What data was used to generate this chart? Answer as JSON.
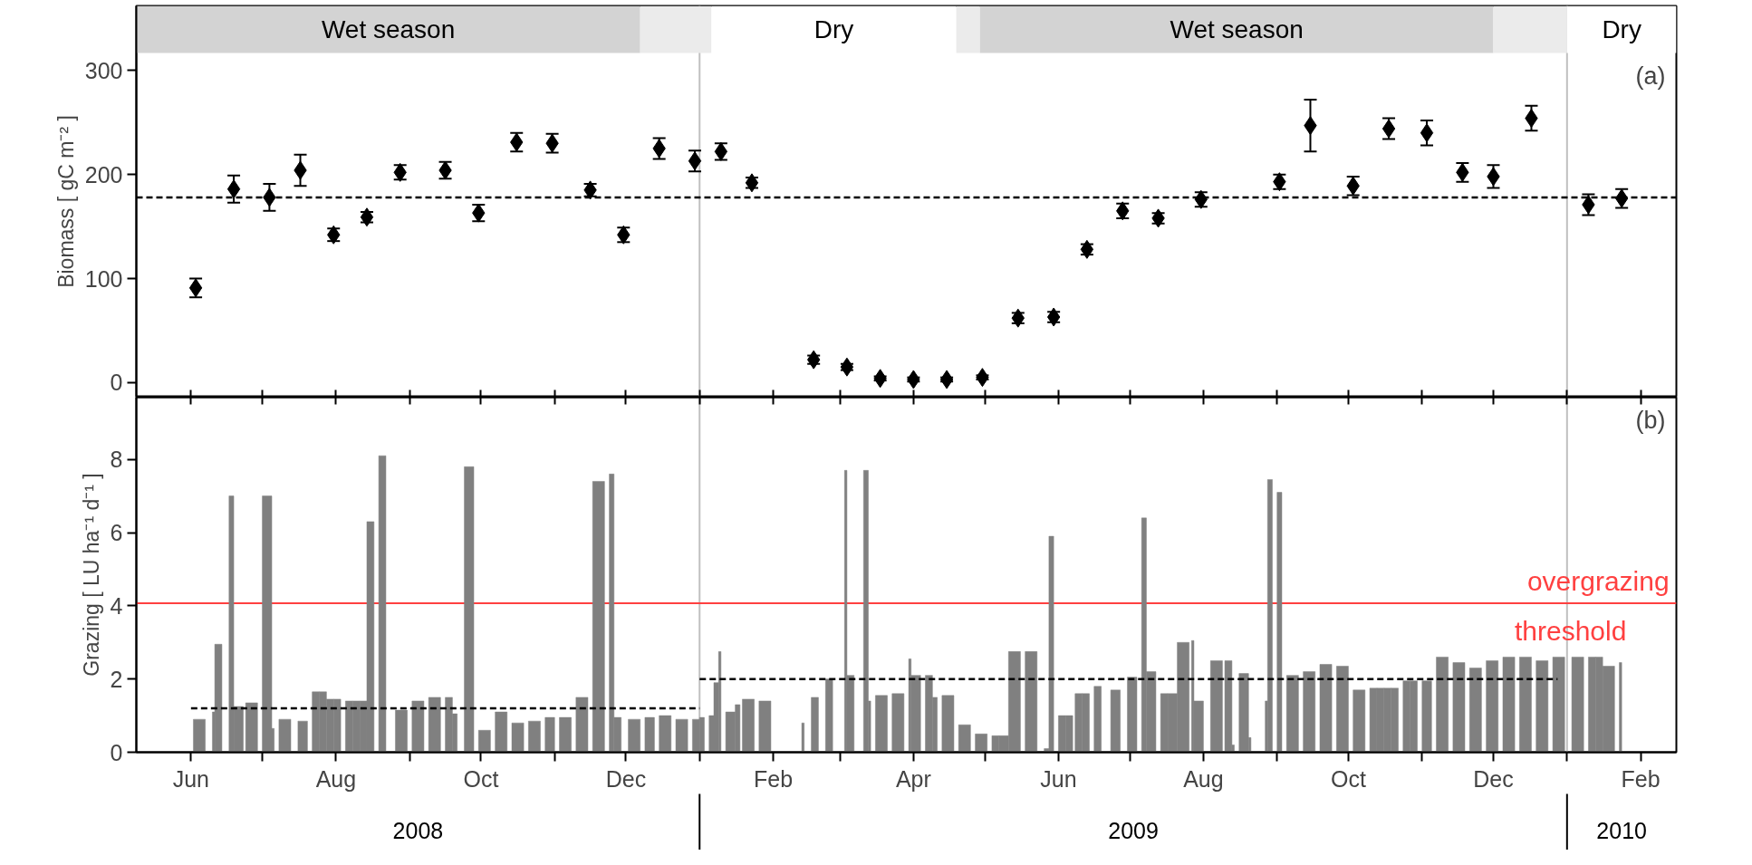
{
  "chart_data": [
    {
      "type": "scatter",
      "ylabel": "Biomass [ gC m⁻² ]",
      "xlim": [
        "2008-05-09",
        "2010-02-16"
      ],
      "ylim": [
        -14,
        362
      ],
      "yticks": [
        0,
        100,
        200,
        300
      ],
      "tick_labels": "y",
      "xticks": [
        {
          "value": "2008-06-01",
          "label": null
        },
        {
          "value": "2008-07-01",
          "label": null
        },
        {
          "value": "2008-08-01",
          "label": null
        },
        {
          "value": "2008-09-01",
          "label": null
        },
        {
          "value": "2008-10-01",
          "label": null
        },
        {
          "value": "2008-11-01",
          "label": null
        },
        {
          "value": "2008-12-01",
          "label": null
        },
        {
          "value": "2009-01-01",
          "label": null
        },
        {
          "value": "2009-02-01",
          "label": null
        },
        {
          "value": "2009-03-01",
          "label": null
        },
        {
          "value": "2009-04-01",
          "label": null
        },
        {
          "value": "2009-05-01",
          "label": null
        },
        {
          "value": "2009-06-01",
          "label": null
        },
        {
          "value": "2009-07-01",
          "label": null
        },
        {
          "value": "2009-08-01",
          "label": null
        },
        {
          "value": "2009-09-01",
          "label": null
        },
        {
          "value": "2009-10-01",
          "label": null
        },
        {
          "value": "2009-11-01",
          "label": null
        },
        {
          "value": "2009-12-01",
          "label": null
        },
        {
          "value": "2010-01-01",
          "label": null
        },
        {
          "value": "2010-02-01",
          "label": null
        }
      ],
      "series": [
        {
          "marker": "diamond",
          "color": "#000000",
          "x": [
            "2008-06-03",
            "2008-06-19",
            "2008-07-04",
            "2008-07-17",
            "2008-07-31",
            "2008-08-14",
            "2008-08-28",
            "2008-09-16",
            "2008-09-30",
            "2008-10-16",
            "2008-10-31",
            "2008-11-16",
            "2008-11-30",
            "2008-12-15",
            "2008-12-30",
            "2009-01-10",
            "2009-01-23",
            "2009-02-18",
            "2009-03-04",
            "2009-03-18",
            "2009-04-01",
            "2009-04-15",
            "2009-04-30",
            "2009-05-15",
            "2009-05-30",
            "2009-06-13",
            "2009-06-28",
            "2009-07-13",
            "2009-07-31",
            "2009-09-02",
            "2009-09-15",
            "2009-10-03",
            "2009-10-18",
            "2009-11-03",
            "2009-11-18",
            "2009-12-01",
            "2009-12-17",
            "2010-01-10",
            "2010-01-24"
          ],
          "values": [
            91,
            186,
            178,
            204,
            142,
            159,
            202,
            204,
            163,
            231,
            230,
            185,
            142,
            225,
            213,
            222,
            192,
            22,
            15,
            4,
            3,
            3,
            5,
            62,
            63,
            128,
            165,
            158,
            176,
            193,
            247,
            189,
            244,
            240,
            202,
            198,
            254,
            171,
            177
          ],
          "errors": [
            9,
            13,
            13,
            15,
            6,
            5,
            7,
            8,
            8,
            9,
            9,
            6,
            7,
            10,
            10,
            8,
            5,
            4,
            3,
            2,
            2,
            2,
            2,
            5,
            5,
            5,
            7,
            5,
            7,
            7,
            25,
            9,
            10,
            12,
            9,
            11,
            12,
            10,
            9
          ]
        },
        {
          "type": "line",
          "color": "#000000",
          "line_style": "dashed",
          "x": [
            "2008-05-09",
            "2010-02-16"
          ],
          "values": [
            178,
            178
          ]
        }
      ],
      "bands": [
        {
          "axis": "x",
          "from": "2008-05-09",
          "to": "2008-12-07",
          "label": "Wet season",
          "color": "#d3d3d3"
        },
        {
          "axis": "x",
          "from": "2008-12-07",
          "to": "2009-01-06",
          "color": "#ebebeb"
        },
        {
          "axis": "x",
          "from": "2009-01-06",
          "to": "2009-04-19",
          "label": "Dry",
          "color": "#ffffff"
        },
        {
          "axis": "x",
          "from": "2009-04-19",
          "to": "2009-04-29",
          "color": "#ebebeb"
        },
        {
          "axis": "x",
          "from": "2009-04-29",
          "to": "2009-12-01",
          "label": "Wet season",
          "color": "#d3d3d3"
        },
        {
          "axis": "x",
          "from": "2009-12-01",
          "to": "2010-01-01",
          "color": "#ebebeb"
        },
        {
          "axis": "x",
          "from": "2010-01-01",
          "to": "2010-02-16",
          "label": "Dry",
          "color": "#ffffff"
        }
      ],
      "ref_lines": [
        {
          "axis": "x",
          "value": "2009-01-01",
          "color": "#c0c0c0"
        },
        {
          "axis": "x",
          "value": "2010-01-01",
          "color": "#c0c0c0"
        }
      ],
      "annotations": [
        "(a)"
      ]
    },
    {
      "type": "bar",
      "ylabel": "Grazing [ LU ha⁻¹ d⁻¹ ]",
      "xlim": [
        "2008-05-09",
        "2010-02-16"
      ],
      "ylim": [
        0,
        9.7
      ],
      "yticks": [
        0,
        2,
        4,
        6,
        8
      ],
      "xticks": [
        {
          "value": "2008-06-01",
          "label": "Jun"
        },
        {
          "value": "2008-07-01",
          "label": null
        },
        {
          "value": "2008-08-01",
          "label": "Aug"
        },
        {
          "value": "2008-09-01",
          "label": null
        },
        {
          "value": "2008-10-01",
          "label": "Oct"
        },
        {
          "value": "2008-11-01",
          "label": null
        },
        {
          "value": "2008-12-01",
          "label": "Dec"
        },
        {
          "value": "2009-01-01",
          "label": null
        },
        {
          "value": "2009-02-01",
          "label": "Feb"
        },
        {
          "value": "2009-03-01",
          "label": null
        },
        {
          "value": "2009-04-01",
          "label": "Apr"
        },
        {
          "value": "2009-05-01",
          "label": null
        },
        {
          "value": "2009-06-01",
          "label": "Jun"
        },
        {
          "value": "2009-07-01",
          "label": null
        },
        {
          "value": "2009-08-01",
          "label": "Aug"
        },
        {
          "value": "2009-09-01",
          "label": null
        },
        {
          "value": "2009-10-01",
          "label": "Oct"
        },
        {
          "value": "2009-11-01",
          "label": null
        },
        {
          "value": "2009-12-01",
          "label": "Dec"
        },
        {
          "value": "2010-01-01",
          "label": null
        },
        {
          "value": "2010-02-01",
          "label": "Feb"
        }
      ],
      "series": [
        {
          "color": "#808080",
          "x": [
            "2008-06-02",
            "2008-06-07",
            "2008-06-10",
            "2008-06-11",
            "2008-06-14",
            "2008-06-17",
            "2008-06-19",
            "2008-06-23",
            "2008-06-24",
            "2008-06-29",
            "2008-07-01",
            "2008-07-05",
            "2008-07-06",
            "2008-07-08",
            "2008-07-13",
            "2008-07-16",
            "2008-07-20",
            "2008-07-22",
            "2008-07-25",
            "2008-07-28",
            "2008-07-31",
            "2008-08-03",
            "2008-08-05",
            "2008-08-08",
            "2008-08-11",
            "2008-08-14",
            "2008-08-17",
            "2008-08-19",
            "2008-08-22",
            "2008-08-26",
            "2008-08-31",
            "2008-09-02",
            "2008-09-07",
            "2008-09-09",
            "2008-09-14",
            "2008-09-16",
            "2008-09-19",
            "2008-09-21",
            "2008-09-24",
            "2008-09-28",
            "2008-09-30",
            "2008-10-05",
            "2008-10-07",
            "2008-10-12",
            "2008-10-14",
            "2008-10-19",
            "2008-10-21",
            "2008-10-26",
            "2008-10-28",
            "2008-11-01",
            "2008-11-03",
            "2008-11-08",
            "2008-11-10",
            "2008-11-15",
            "2008-11-17",
            "2008-11-22",
            "2008-11-24",
            "2008-11-26",
            "2008-11-29",
            "2008-12-02",
            "2008-12-07",
            "2008-12-09",
            "2008-12-13",
            "2008-12-15",
            "2008-12-20",
            "2008-12-22",
            "2008-12-27",
            "2008-12-29",
            "2009-01-01",
            "2009-01-03",
            "2009-01-05",
            "2009-01-07",
            "2009-01-09",
            "2009-01-10",
            "2009-01-12",
            "2009-01-16",
            "2009-01-18",
            "2009-01-19",
            "2009-01-24",
            "2009-01-26",
            "2009-01-31",
            "2009-02-13",
            "2009-02-14",
            "2009-02-17",
            "2009-02-20",
            "2009-02-23",
            "2009-02-26",
            "2009-03-03",
            "2009-03-04",
            "2009-03-07",
            "2009-03-11",
            "2009-03-13",
            "2009-03-14",
            "2009-03-16",
            "2009-03-21",
            "2009-03-23",
            "2009-03-28",
            "2009-03-30",
            "2009-03-31",
            "2009-04-04",
            "2009-04-06",
            "2009-04-09",
            "2009-04-11",
            "2009-04-13",
            "2009-04-18",
            "2009-04-20",
            "2009-04-25",
            "2009-04-27",
            "2009-05-02",
            "2009-05-04",
            "2009-05-07",
            "2009-05-11",
            "2009-05-16",
            "2009-05-18",
            "2009-05-23",
            "2009-05-26",
            "2009-05-28",
            "2009-05-30",
            "2009-06-01",
            "2009-06-04",
            "2009-06-07",
            "2009-06-08",
            "2009-06-11",
            "2009-06-14",
            "2009-06-16",
            "2009-06-19",
            "2009-06-23",
            "2009-06-27",
            "2009-06-30",
            "2009-07-04",
            "2009-07-06",
            "2009-07-08",
            "2009-07-12",
            "2009-07-14",
            "2009-07-17",
            "2009-07-21",
            "2009-07-26",
            "2009-07-27",
            "2009-07-28",
            "2009-08-01",
            "2009-08-04",
            "2009-08-09",
            "2009-08-10",
            "2009-08-13",
            "2009-08-14",
            "2009-08-16",
            "2009-08-20",
            "2009-08-21",
            "2009-08-27",
            "2009-08-28",
            "2009-08-30",
            "2009-09-01",
            "2009-09-03",
            "2009-09-05",
            "2009-09-10",
            "2009-09-12",
            "2009-09-17",
            "2009-09-19",
            "2009-09-24",
            "2009-09-26",
            "2009-10-01",
            "2009-10-03",
            "2009-10-08",
            "2009-10-10",
            "2009-10-13",
            "2009-10-16",
            "2009-10-19",
            "2009-10-22",
            "2009-10-24",
            "2009-10-27",
            "2009-10-30",
            "2009-11-01",
            "2009-11-05",
            "2009-11-07",
            "2009-11-12",
            "2009-11-14",
            "2009-11-19",
            "2009-11-21",
            "2009-11-26",
            "2009-11-28",
            "2009-12-03",
            "2009-12-05",
            "2009-12-10",
            "2009-12-12",
            "2009-12-17",
            "2009-12-19",
            "2009-12-24",
            "2009-12-26",
            "2009-12-31",
            "2010-01-03",
            "2010-01-08",
            "2010-01-10",
            "2010-01-13",
            "2010-01-16",
            "2010-01-21",
            "2010-01-23"
          ],
          "values": [
            0.9,
            null,
            1.1,
            2.95,
            null,
            7.0,
            1.25,
            null,
            1.35,
            null,
            7.0,
            0.65,
            null,
            0.9,
            null,
            0.85,
            null,
            1.65,
            1.65,
            1.45,
            1.45,
            null,
            1.4,
            1.4,
            1.4,
            6.3,
            null,
            8.1,
            null,
            1.15,
            null,
            1.4,
            null,
            1.5,
            null,
            1.5,
            1.05,
            null,
            7.8,
            null,
            0.6,
            null,
            1.1,
            null,
            0.8,
            null,
            0.85,
            null,
            0.95,
            null,
            0.95,
            null,
            1.5,
            null,
            7.4,
            null,
            7.6,
            0.95,
            null,
            0.9,
            null,
            0.95,
            null,
            1.0,
            null,
            0.9,
            null,
            0.9,
            0.95,
            null,
            1.0,
            1.9,
            2.75,
            null,
            1.1,
            1.3,
            null,
            1.45,
            null,
            1.4,
            null,
            0.8,
            null,
            1.5,
            null,
            2.0,
            null,
            7.7,
            2.1,
            null,
            7.7,
            1.4,
            null,
            1.55,
            null,
            1.6,
            null,
            2.55,
            2.1,
            null,
            2.1,
            1.5,
            null,
            1.55,
            null,
            0.75,
            null,
            0.5,
            null,
            0.45,
            0.45,
            2.75,
            null,
            2.75,
            null,
            0.1,
            5.9,
            null,
            1.0,
            1.0,
            null,
            1.6,
            1.6,
            null,
            1.8,
            null,
            1.7,
            null,
            2.05,
            null,
            6.4,
            2.2,
            null,
            1.6,
            1.6,
            3.0,
            null,
            3.05,
            1.4,
            null,
            2.5,
            null,
            2.5,
            0.2,
            null,
            2.15,
            0.4,
            null,
            1.4,
            7.45,
            null,
            7.1,
            null,
            2.1,
            null,
            2.2,
            null,
            2.4,
            null,
            2.35,
            null,
            1.7,
            null,
            1.75,
            1.75,
            1.75,
            1.75,
            null,
            1.95,
            1.95,
            null,
            1.95,
            null,
            2.6,
            null,
            2.45,
            null,
            2.3,
            null,
            2.5,
            null,
            2.6,
            null,
            2.6,
            null,
            2.5,
            null,
            2.6,
            null,
            2.6,
            null,
            2.6,
            2.6,
            2.35,
            null,
            2.45
          ]
        },
        {
          "type": "line",
          "color": "#000000",
          "line_style": "dashed",
          "x": [
            "2008-06-01",
            "2009-01-01"
          ],
          "values": [
            1.2,
            1.2
          ]
        },
        {
          "type": "line",
          "color": "#000000",
          "line_style": "dashed",
          "x": [
            "2009-01-01",
            "2009-12-28"
          ],
          "values": [
            2.0,
            2.0
          ]
        }
      ],
      "ref_lines": [
        {
          "axis": "x",
          "value": "2009-01-01",
          "color": "#c0c0c0"
        },
        {
          "axis": "x",
          "value": "2010-01-01",
          "color": "#c0c0c0"
        },
        {
          "axis": "y",
          "value": 4.07,
          "label": "overgrazing threshold",
          "color": "#ff4040"
        }
      ],
      "annotations": [
        "(b)",
        "2008",
        "2009",
        "2010"
      ]
    }
  ]
}
